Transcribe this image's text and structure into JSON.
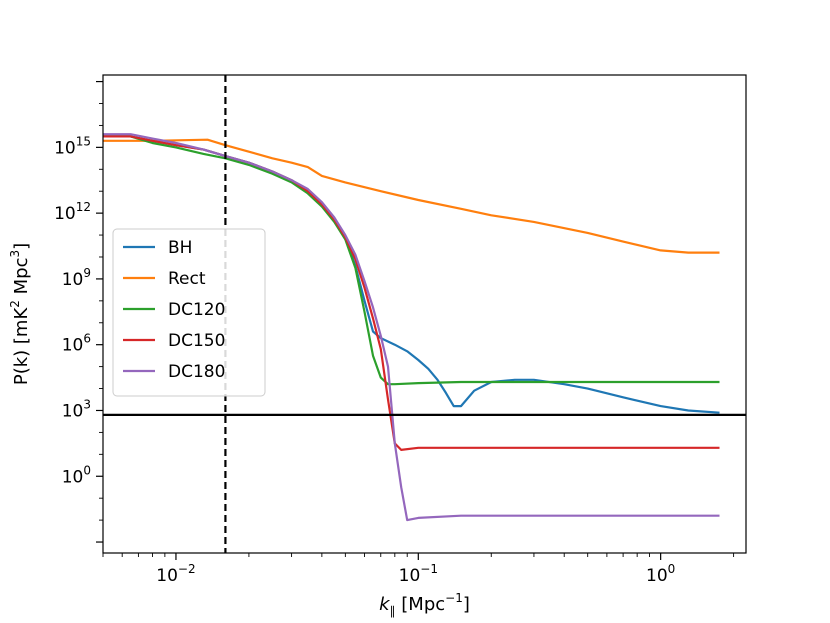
{
  "chart_data": {
    "type": "line",
    "title": "",
    "xlabel": "k_∥ [Mpc^-1]",
    "xlabel_parts": {
      "k": "k",
      "sub": "∥",
      "unit_open": "[Mpc",
      "unit_exp": "−1",
      "unit_close": "]"
    },
    "ylabel_parts": {
      "main": "P(k) [mK",
      "exp1": "2",
      "mid": " Mpc",
      "exp2": "3",
      "end": "]"
    },
    "xscale": "log",
    "yscale": "log",
    "xlim": [
      0.005,
      2.25
    ],
    "ylim_log10": [
      -3.5,
      18.3
    ],
    "xticks": [
      {
        "value": 0.01,
        "base": "10",
        "exp": "−2"
      },
      {
        "value": 0.1,
        "base": "10",
        "exp": "−1"
      },
      {
        "value": 1,
        "base": "10",
        "exp": "0"
      }
    ],
    "yticks": [
      {
        "log": 0,
        "base": "10",
        "exp": "0"
      },
      {
        "log": 3,
        "base": "10",
        "exp": "3"
      },
      {
        "log": 6,
        "base": "10",
        "exp": "6"
      },
      {
        "log": 9,
        "base": "10",
        "exp": "9"
      },
      {
        "log": 12,
        "base": "10",
        "exp": "12"
      },
      {
        "log": 15,
        "base": "10",
        "exp": "15"
      }
    ],
    "hline_log10": 2.8,
    "vline_x": 0.016,
    "legend_position": "center-left",
    "series": [
      {
        "name": "BH",
        "color": "#1f77b4",
        "x": [
          0.005,
          0.0065,
          0.008,
          0.01,
          0.013,
          0.016,
          0.02,
          0.025,
          0.03,
          0.035,
          0.04,
          0.045,
          0.05,
          0.055,
          0.06,
          0.065,
          0.07,
          0.08,
          0.09,
          0.1,
          0.11,
          0.12,
          0.13,
          0.14,
          0.15,
          0.17,
          0.2,
          0.25,
          0.3,
          0.4,
          0.5,
          0.7,
          1.0,
          1.3,
          1.75
        ],
        "y_log10": [
          15.5,
          15.5,
          15.3,
          15.1,
          14.9,
          14.6,
          14.3,
          13.9,
          13.5,
          13.0,
          12.4,
          11.7,
          10.9,
          9.6,
          8.0,
          6.6,
          6.3,
          6.0,
          5.7,
          5.3,
          4.9,
          4.4,
          3.8,
          3.2,
          3.2,
          3.9,
          4.3,
          4.4,
          4.4,
          4.2,
          4.0,
          3.6,
          3.2,
          3.0,
          2.9
        ]
      },
      {
        "name": "Rect",
        "color": "#ff7f0e",
        "x": [
          0.005,
          0.008,
          0.0135,
          0.016,
          0.02,
          0.025,
          0.03,
          0.035,
          0.04,
          0.05,
          0.07,
          0.1,
          0.15,
          0.2,
          0.3,
          0.5,
          0.7,
          1.0,
          1.3,
          1.75
        ],
        "y_log10": [
          15.3,
          15.3,
          15.35,
          15.1,
          14.8,
          14.5,
          14.3,
          14.1,
          13.7,
          13.4,
          13.0,
          12.6,
          12.2,
          11.9,
          11.6,
          11.1,
          10.7,
          10.3,
          10.2,
          10.2
        ]
      },
      {
        "name": "DC120",
        "color": "#2ca02c",
        "x": [
          0.005,
          0.0065,
          0.008,
          0.01,
          0.013,
          0.016,
          0.02,
          0.025,
          0.03,
          0.035,
          0.04,
          0.045,
          0.05,
          0.055,
          0.06,
          0.065,
          0.07,
          0.075,
          0.08,
          0.1,
          0.15,
          0.2,
          0.3,
          0.5,
          1.0,
          1.75
        ],
        "y_log10": [
          15.5,
          15.5,
          15.2,
          15.0,
          14.7,
          14.5,
          14.2,
          13.8,
          13.4,
          12.9,
          12.3,
          11.6,
          10.8,
          9.5,
          7.5,
          5.5,
          4.5,
          4.2,
          4.2,
          4.25,
          4.3,
          4.3,
          4.3,
          4.3,
          4.3,
          4.3
        ]
      },
      {
        "name": "DC150",
        "color": "#d62728",
        "x": [
          0.005,
          0.0065,
          0.008,
          0.01,
          0.013,
          0.016,
          0.02,
          0.025,
          0.03,
          0.035,
          0.04,
          0.045,
          0.05,
          0.055,
          0.06,
          0.065,
          0.07,
          0.075,
          0.08,
          0.085,
          0.1,
          0.15,
          0.2,
          0.3,
          0.5,
          1.0,
          1.75
        ],
        "y_log10": [
          15.5,
          15.5,
          15.3,
          15.1,
          14.9,
          14.6,
          14.3,
          13.9,
          13.5,
          13.0,
          12.4,
          11.7,
          10.9,
          9.9,
          8.6,
          7.2,
          5.8,
          3.5,
          1.5,
          1.2,
          1.3,
          1.3,
          1.3,
          1.3,
          1.3,
          1.3,
          1.3
        ]
      },
      {
        "name": "DC180",
        "color": "#9467bd",
        "x": [
          0.005,
          0.0065,
          0.008,
          0.01,
          0.013,
          0.016,
          0.02,
          0.025,
          0.03,
          0.035,
          0.04,
          0.045,
          0.05,
          0.055,
          0.06,
          0.065,
          0.07,
          0.075,
          0.08,
          0.085,
          0.09,
          0.1,
          0.15,
          0.2,
          0.3,
          0.5,
          1.0,
          1.75
        ],
        "y_log10": [
          15.6,
          15.6,
          15.4,
          15.2,
          14.9,
          14.6,
          14.3,
          13.9,
          13.5,
          13.1,
          12.5,
          11.8,
          11.0,
          10.1,
          8.9,
          7.7,
          6.4,
          5.0,
          1.5,
          -0.5,
          -2.0,
          -1.9,
          -1.8,
          -1.8,
          -1.8,
          -1.8,
          -1.8,
          -1.8
        ]
      }
    ]
  }
}
